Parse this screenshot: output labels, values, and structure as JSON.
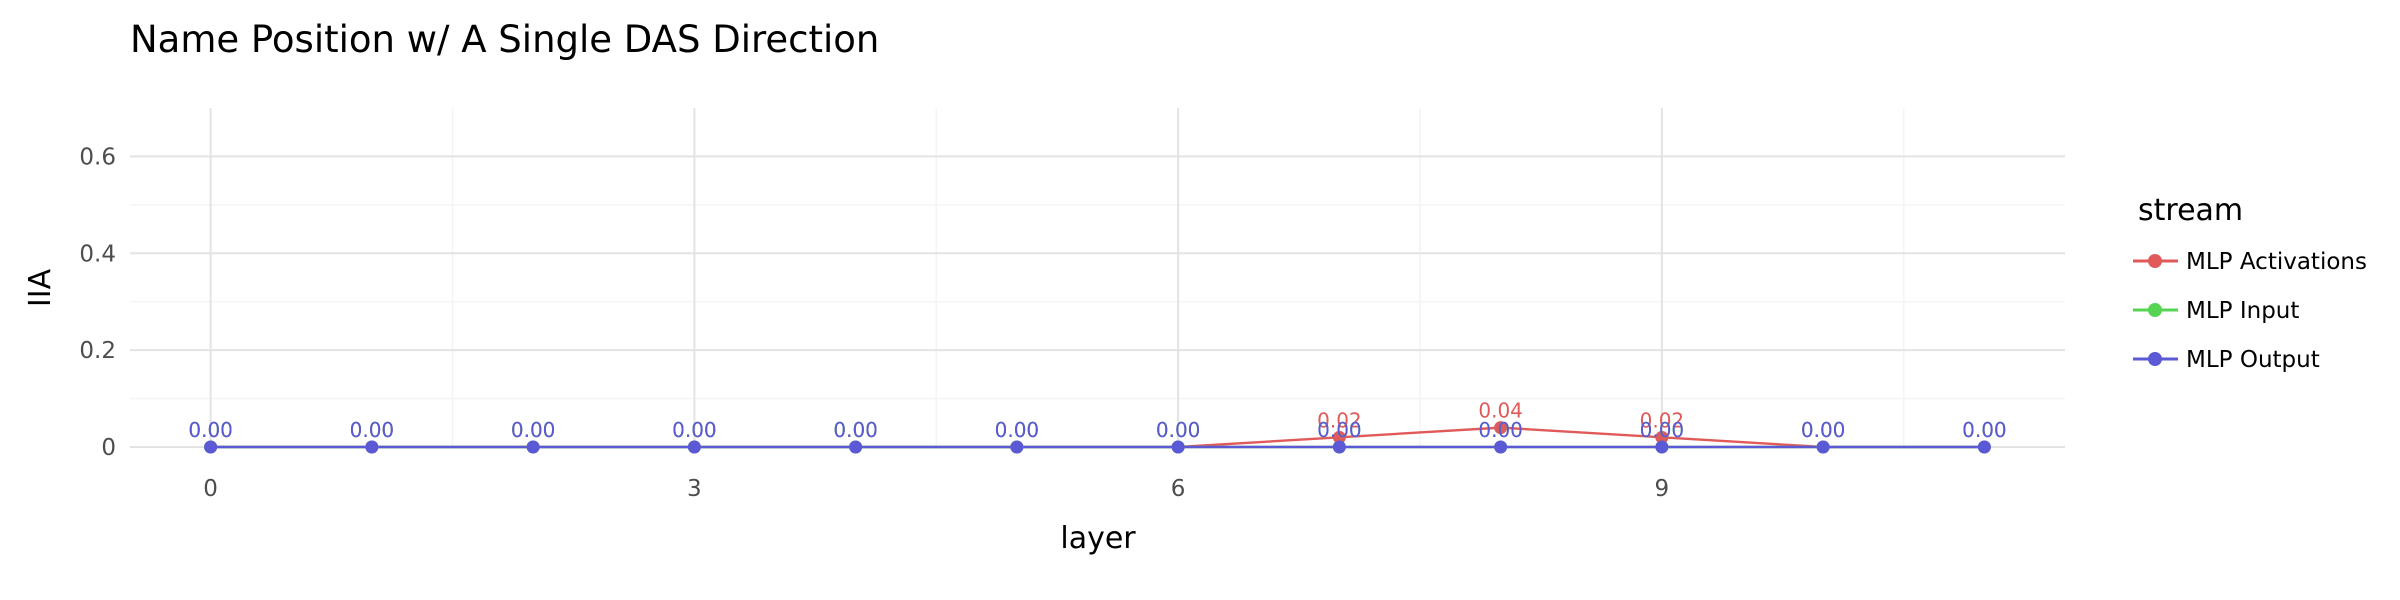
{
  "chart_data": {
    "type": "line",
    "title": "Name Position w/ A Single DAS Direction",
    "xlabel": "layer",
    "ylabel": "IIA",
    "xlim": [
      -0.5,
      11.5
    ],
    "ylim": [
      0,
      0.7
    ],
    "x_ticks": [
      0,
      3,
      6,
      9
    ],
    "y_ticks": [
      0,
      0.2,
      0.4,
      0.6
    ],
    "y_tick_labels": [
      "0",
      "0.2",
      "0.4",
      "0.6"
    ],
    "grid": true,
    "legend_title": "stream",
    "legend_position": "right",
    "x": [
      0,
      1,
      2,
      3,
      4,
      5,
      6,
      7,
      8,
      9,
      10,
      11
    ],
    "series": [
      {
        "name": "MLP Activations",
        "color": "#e05a5a",
        "values": [
          0,
          0,
          0,
          0,
          0,
          0,
          0,
          0.02,
          0.04,
          0.02,
          0,
          0
        ],
        "labels": [
          "0.00",
          "0.00",
          "0.00",
          "0.00",
          "0.00",
          "0.00",
          "0.00",
          "0.02",
          "0.04",
          "0.02",
          "0.00",
          "0.00"
        ]
      },
      {
        "name": "MLP Input",
        "color": "#55d454",
        "values": [
          0,
          0,
          0,
          0,
          0,
          0,
          0,
          0,
          0,
          0,
          0,
          0
        ],
        "labels": [
          "0.00",
          "0.00",
          "0.00",
          "0.00",
          "0.00",
          "0.00",
          "0.00",
          "0.00",
          "0.00",
          "0.00",
          "0.00",
          "0.00"
        ]
      },
      {
        "name": "MLP Output",
        "color": "#5b59d6",
        "values": [
          0,
          0,
          0,
          0,
          0,
          0,
          0,
          0,
          0,
          0,
          0,
          0
        ],
        "labels": [
          "0.00",
          "0.00",
          "0.00",
          "0.00",
          "0.00",
          "0.00",
          "0.00",
          "0.00",
          "0.00",
          "0.00",
          "0.00",
          "0.00"
        ]
      }
    ]
  }
}
